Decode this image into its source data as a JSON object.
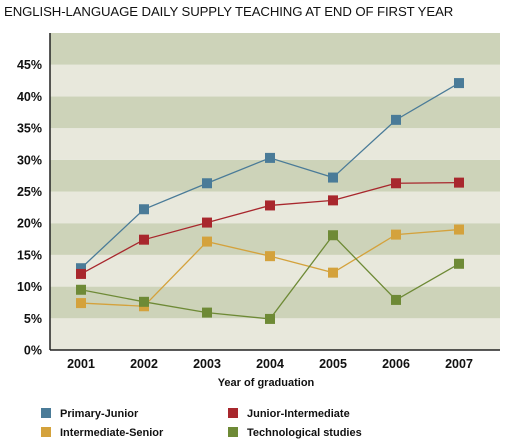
{
  "chart_data": {
    "type": "line",
    "title": "ENGLISH-LANGUAGE DAILY SUPPLY TEACHING AT END OF FIRST YEAR",
    "xlabel": "Year of graduation",
    "ylabel": "",
    "categories": [
      "2001",
      "2002",
      "2003",
      "2004",
      "2005",
      "2006",
      "2007"
    ],
    "y_ticks": [
      "0%",
      "5%",
      "10%",
      "15%",
      "20%",
      "25%",
      "30%",
      "35%",
      "40%",
      "45%"
    ],
    "ylim": [
      0,
      50
    ],
    "grid": "alternating horizontal bands",
    "legend_placement": "bottom",
    "series": [
      {
        "name": "Primary-Junior",
        "color": "#4a7b98",
        "values": [
          12.9,
          22.2,
          26.3,
          30.3,
          27.2,
          36.3,
          42.1
        ]
      },
      {
        "name": "Junior-Intermediate",
        "color": "#a8272d",
        "values": [
          12.0,
          17.4,
          20.1,
          22.8,
          23.6,
          26.3,
          26.4
        ]
      },
      {
        "name": "Intermediate-Senior",
        "color": "#d4a23c",
        "values": [
          7.4,
          6.9,
          17.1,
          14.8,
          12.2,
          18.2,
          19.0
        ]
      },
      {
        "name": "Technological studies",
        "color": "#6e8a36",
        "values": [
          9.5,
          7.6,
          5.9,
          4.9,
          18.1,
          7.9,
          13.6
        ]
      }
    ]
  },
  "colors": {
    "band_light": "#e8e8dc",
    "band_dark": "#cdd3b9",
    "axis": "#222222"
  }
}
